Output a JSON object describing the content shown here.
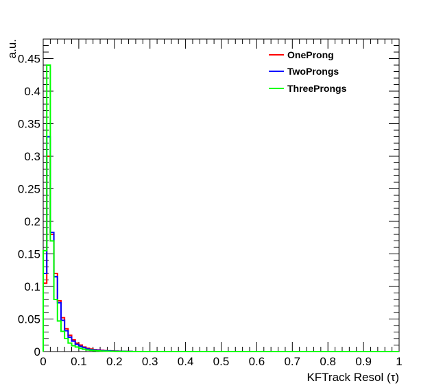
{
  "chart_data": {
    "type": "line",
    "style": "step-histogram",
    "xlabel": "KFTrack Resol (τ)",
    "ylabel": "a.u.",
    "xlim": [
      0,
      1
    ],
    "ylim": [
      0,
      0.48
    ],
    "x_ticks": [
      "0",
      "0.1",
      "0.2",
      "0.3",
      "0.4",
      "0.5",
      "0.6",
      "0.7",
      "0.8",
      "0.9",
      "1"
    ],
    "y_ticks": [
      "0",
      "0.05",
      "0.1",
      "0.15",
      "0.2",
      "0.25",
      "0.3",
      "0.35",
      "0.4",
      "0.45"
    ],
    "bin_width": 0.01,
    "legend_position": "top-right",
    "grid": false,
    "series": [
      {
        "name": "OneProng",
        "color": "#ff0000",
        "values": [
          0.105,
          0.3,
          0.18,
          0.12,
          0.078,
          0.052,
          0.035,
          0.025,
          0.018,
          0.013,
          0.01,
          0.007,
          0.005,
          0.004,
          0.003,
          0.0025,
          0.002,
          0.0015,
          0.0012,
          0.001,
          0.0008,
          0.0006,
          0.0005,
          0.0004,
          0.0003
        ]
      },
      {
        "name": "TwoProngs",
        "color": "#0000ff",
        "values": [
          0.12,
          0.33,
          0.183,
          0.115,
          0.075,
          0.048,
          0.032,
          0.022,
          0.016,
          0.011,
          0.008,
          0.006,
          0.004,
          0.003,
          0.0025,
          0.002,
          0.0015,
          0.0012,
          0.001,
          0.0008,
          0.0006,
          0.0005,
          0.0004,
          0.0003,
          0.0002
        ]
      },
      {
        "name": "ThreeProngs",
        "color": "#00ff00",
        "values": [
          0.155,
          0.44,
          0.17,
          0.08,
          0.047,
          0.031,
          0.02,
          0.013,
          0.009,
          0.007,
          0.005,
          0.0035,
          0.0025,
          0.002,
          0.0015,
          0.001,
          0.0008,
          0.0006,
          0.0005,
          0.0004,
          0.0003,
          0.0002,
          0.0002,
          0.0001,
          0.0001
        ]
      }
    ]
  }
}
